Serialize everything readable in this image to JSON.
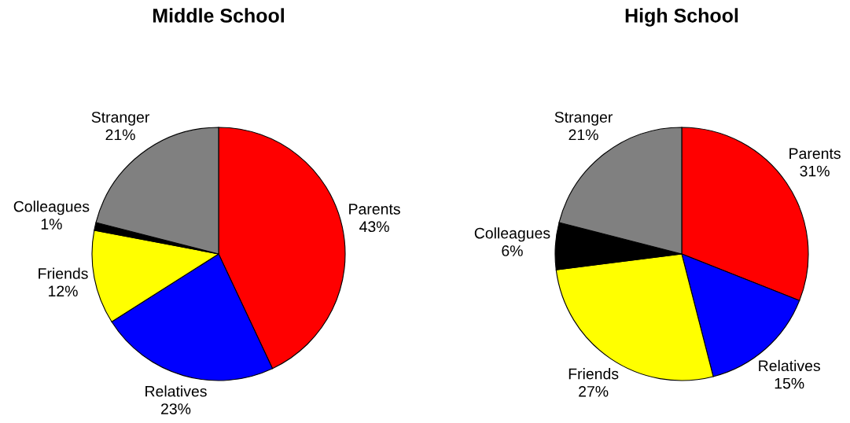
{
  "chart_data": [
    {
      "type": "pie",
      "title": "Middle School",
      "categories": [
        "Parents",
        "Relatives",
        "Friends",
        "Colleagues",
        "Stranger"
      ],
      "values": [
        43,
        23,
        12,
        1,
        21
      ],
      "value_labels": [
        "43%",
        "23%",
        "12%",
        "1%",
        "21%"
      ],
      "colors": [
        "#ff0000",
        "#0000ff",
        "#ffff00",
        "#000000",
        "#808080"
      ]
    },
    {
      "type": "pie",
      "title": "High School",
      "categories": [
        "Parents",
        "Relatives",
        "Friends",
        "Colleagues",
        "Stranger"
      ],
      "values": [
        31,
        15,
        27,
        6,
        21
      ],
      "value_labels": [
        "31%",
        "15%",
        "27%",
        "6%",
        "21%"
      ],
      "colors": [
        "#ff0000",
        "#0000ff",
        "#ffff00",
        "#000000",
        "#808080"
      ]
    }
  ]
}
